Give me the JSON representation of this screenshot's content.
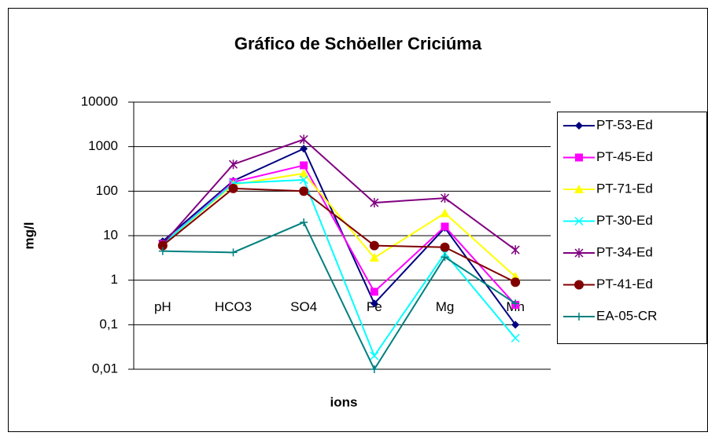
{
  "chart_data": {
    "type": "line",
    "title": "Gráfico de Schöeller Criciúma",
    "x_label": "ions",
    "y_label": "mg/l",
    "log_scale": true,
    "grid": true,
    "legend": "right",
    "categories": [
      "pH",
      "HCO3",
      "SO4",
      "Fe",
      "Mg",
      "Mn"
    ],
    "ylim": [
      0.01,
      10000
    ],
    "yticks": [
      {
        "value": 0.01,
        "label": "0,01"
      },
      {
        "value": 0.1,
        "label": "0,1"
      },
      1,
      10,
      100,
      1000,
      10000
    ],
    "series": [
      {
        "name": "PT-53-Ed",
        "color": "#000080",
        "marker": "diamond",
        "values": [
          7.5,
          170,
          900,
          0.3,
          15,
          0.1
        ]
      },
      {
        "name": "PT-45-Ed",
        "color": "#ff00ff",
        "marker": "square",
        "values": [
          6.5,
          160,
          380,
          0.55,
          16,
          0.28
        ]
      },
      {
        "name": "PT-71-Ed",
        "color": "#ffff00",
        "marker": "triangle",
        "values": [
          6.5,
          140,
          250,
          3.2,
          32,
          1.2
        ]
      },
      {
        "name": "PT-30-Ed",
        "color": "#00ffff",
        "marker": "x",
        "values": [
          6.5,
          150,
          180,
          0.02,
          4,
          0.05
        ]
      },
      {
        "name": "PT-34-Ed",
        "color": "#800080",
        "marker": "star",
        "values": [
          6.5,
          400,
          1450,
          55,
          70,
          4.8
        ]
      },
      {
        "name": "PT-41-Ed",
        "color": "#800000",
        "marker": "circle",
        "values": [
          6,
          115,
          100,
          6,
          5.5,
          0.9
        ]
      },
      {
        "name": "EA-05-CR",
        "color": "#008080",
        "marker": "plus",
        "values": [
          4.5,
          4.2,
          20,
          0.01,
          3.3,
          0.3
        ]
      }
    ]
  }
}
